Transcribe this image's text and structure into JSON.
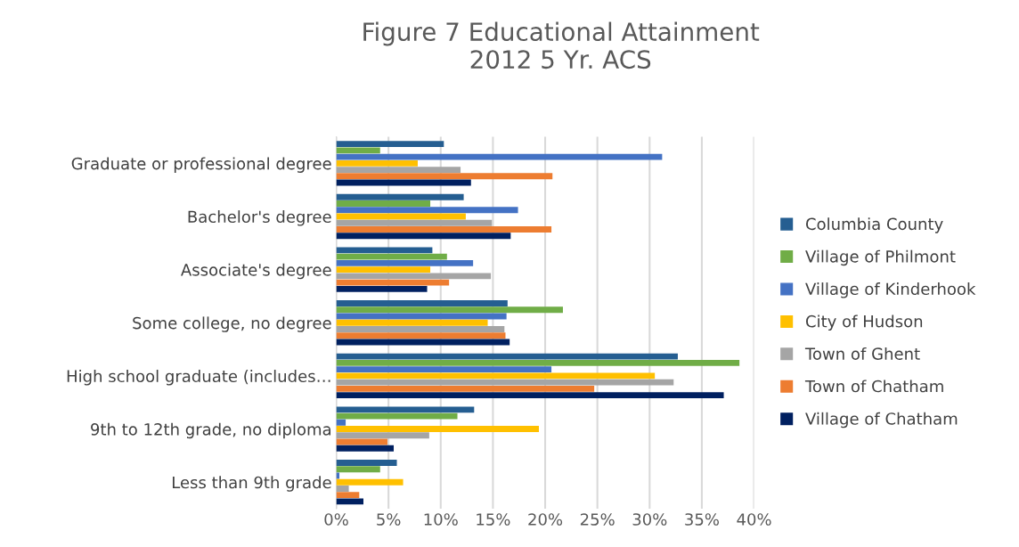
{
  "chart_data": {
    "type": "bar",
    "orientation": "horizontal",
    "title": "Figure 7 Educational Attainment\n2012 5 Yr. ACS",
    "categories": [
      "Graduate or professional degree",
      "Bachelor's degree",
      "Associate's degree",
      "Some college, no degree",
      "High school graduate (includes…",
      "9th to 12th grade, no diploma",
      "Less than 9th grade"
    ],
    "series": [
      {
        "name": "Columbia County",
        "color": "#255e91",
        "values": [
          10.3,
          12.2,
          9.2,
          16.4,
          32.7,
          13.2,
          5.8
        ]
      },
      {
        "name": "Village of Philmont",
        "color": "#70ad47",
        "values": [
          4.2,
          9.0,
          10.6,
          21.7,
          38.6,
          11.6,
          4.2
        ]
      },
      {
        "name": "Village of Kinderhook",
        "color": "#4472c4",
        "values": [
          31.2,
          17.4,
          13.1,
          16.3,
          20.6,
          0.9,
          0.3
        ]
      },
      {
        "name": "City of Hudson",
        "color": "#ffc000",
        "values": [
          7.8,
          12.4,
          9.0,
          14.5,
          30.5,
          19.4,
          6.4
        ]
      },
      {
        "name": "Town of Ghent",
        "color": "#a5a5a5",
        "values": [
          11.9,
          14.9,
          14.8,
          16.1,
          32.3,
          8.9,
          1.2
        ]
      },
      {
        "name": "Town of Chatham",
        "color": "#ed7d31",
        "values": [
          20.7,
          20.6,
          10.8,
          16.2,
          24.7,
          4.9,
          2.2
        ]
      },
      {
        "name": "Village of Chatham",
        "color": "#002060",
        "values": [
          12.9,
          16.7,
          8.7,
          16.6,
          37.1,
          5.5,
          2.6
        ]
      }
    ],
    "xlim": [
      0,
      40
    ],
    "xticks": [
      {
        "value": 0,
        "label": "0%"
      },
      {
        "value": 5,
        "label": "5%"
      },
      {
        "value": 10,
        "label": "10%"
      },
      {
        "value": 15,
        "label": "15%"
      },
      {
        "value": 20,
        "label": "20%"
      },
      {
        "value": 25,
        "label": "25%"
      },
      {
        "value": 30,
        "label": "30%"
      },
      {
        "value": 35,
        "label": "35%"
      },
      {
        "value": 40,
        "label": "40%"
      }
    ],
    "grid": "x",
    "legend": "right"
  }
}
